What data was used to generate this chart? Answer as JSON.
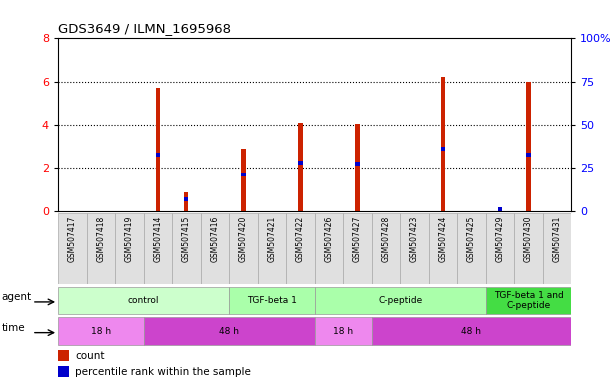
{
  "title": "GDS3649 / ILMN_1695968",
  "samples": [
    "GSM507417",
    "GSM507418",
    "GSM507419",
    "GSM507414",
    "GSM507415",
    "GSM507416",
    "GSM507420",
    "GSM507421",
    "GSM507422",
    "GSM507426",
    "GSM507427",
    "GSM507428",
    "GSM507423",
    "GSM507424",
    "GSM507425",
    "GSM507429",
    "GSM507430",
    "GSM507431"
  ],
  "count_values": [
    0,
    0,
    0,
    5.7,
    0.9,
    0,
    2.9,
    0,
    4.1,
    0,
    4.05,
    0,
    0,
    6.2,
    0,
    0,
    6.0,
    0
  ],
  "percentile_values_scaled": [
    0,
    0,
    0,
    2.6,
    0.55,
    0,
    1.7,
    0,
    2.25,
    0,
    2.2,
    0,
    0,
    2.9,
    0,
    0.12,
    2.6,
    0
  ],
  "ylim": [
    0,
    8
  ],
  "y2lim": [
    0,
    100
  ],
  "yticks": [
    0,
    2,
    4,
    6,
    8
  ],
  "y2ticks": [
    0,
    25,
    50,
    75,
    100
  ],
  "agent_groups": [
    {
      "label": "control",
      "start": 0,
      "end": 6,
      "color": "#ccffcc"
    },
    {
      "label": "TGF-beta 1",
      "start": 6,
      "end": 9,
      "color": "#aaffaa"
    },
    {
      "label": "C-peptide",
      "start": 9,
      "end": 15,
      "color": "#aaffaa"
    },
    {
      "label": "TGF-beta 1 and\nC-peptide",
      "start": 15,
      "end": 18,
      "color": "#44dd44"
    }
  ],
  "time_groups": [
    {
      "label": "18 h",
      "start": 0,
      "end": 3,
      "color": "#ee88ee"
    },
    {
      "label": "48 h",
      "start": 3,
      "end": 9,
      "color": "#cc44cc"
    },
    {
      "label": "18 h",
      "start": 9,
      "end": 11,
      "color": "#ee88ee"
    },
    {
      "label": "48 h",
      "start": 11,
      "end": 18,
      "color": "#cc44cc"
    }
  ],
  "bar_color": "#cc2200",
  "percentile_color": "#0000cc",
  "sample_bg_color": "#e0e0e0",
  "sample_border_color": "#aaaaaa",
  "bar_width": 0.15
}
